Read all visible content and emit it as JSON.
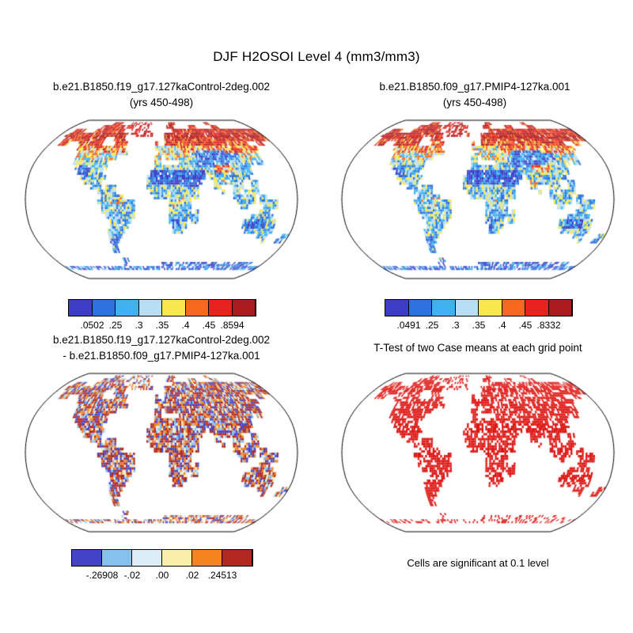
{
  "main_title": "DJF H2OSOI Level 4 (mm3/mm3)",
  "panels": [
    {
      "title_line1": "b.e21.B1850.f19_g17.127kaControl-2deg.002",
      "title_line2": "(yrs 450-498)",
      "colorbar": {
        "labels": [
          ".0502",
          ".25",
          ".3",
          ".35",
          ".4",
          ".45",
          ".8594"
        ],
        "colors": [
          "#3d3dc8",
          "#2d72e0",
          "#3fb0f0",
          "#b8def5",
          "#f8e84e",
          "#f8691d",
          "#e8231e",
          "#ab1a1e"
        ]
      }
    },
    {
      "title_line1": "b.e21.B1850.f09_g17.PMIP4-127ka.001",
      "title_line2": "(yrs 450-498)",
      "colorbar": {
        "labels": [
          ".0491",
          ".25",
          ".3",
          ".35",
          ".4",
          ".45",
          ".8332"
        ],
        "colors": [
          "#3d3dc8",
          "#2d72e0",
          "#3fb0f0",
          "#b8def5",
          "#f8e84e",
          "#f8691d",
          "#e8231e",
          "#ab1a1e"
        ]
      }
    },
    {
      "title_line1": "b.e21.B1850.f19_g17.127kaControl-2deg.002",
      "title_line2": "- b.e21.B1850.f09_g17.PMIP4-127ka.001",
      "colorbar": {
        "labels": [
          "-.26908",
          "-.02",
          ".00",
          ".02",
          ".24513"
        ],
        "colors": [
          "#4343c8",
          "#85c1ec",
          "#dcedf8",
          "#f9eeaa",
          "#f5831f",
          "#b22820"
        ]
      }
    },
    {
      "title": "T-Test of two Case means at each grid point",
      "caption": "Cells are significant at 0.1 level",
      "significant_color": "#dd1512"
    }
  ],
  "chart_data": {
    "type": "heatmap",
    "projection": "robinson",
    "title": "DJF H2OSOI Level 4 (mm3/mm3)",
    "variable": "H2OSOI",
    "season": "DJF",
    "level": 4,
    "units": "mm3/mm3",
    "panels": [
      {
        "case": "b.e21.B1850.f19_g17.127kaControl-2deg.002",
        "years": "450-498",
        "min": 0.0502,
        "max": 0.8594,
        "contour_levels": [
          0.25,
          0.3,
          0.35,
          0.4,
          0.45
        ]
      },
      {
        "case": "b.e21.B1850.f09_g17.PMIP4-127ka.001",
        "years": "450-498",
        "min": 0.0491,
        "max": 0.8332,
        "contour_levels": [
          0.25,
          0.3,
          0.35,
          0.4,
          0.45
        ]
      },
      {
        "case": "difference (Control minus PMIP4)",
        "min": -0.26908,
        "max": 0.24513,
        "contour_levels": [
          -0.02,
          0.0,
          0.02
        ]
      },
      {
        "case": "t-test",
        "significance_level": 0.1,
        "note": "Cells are significant at 0.1 level"
      }
    ]
  }
}
